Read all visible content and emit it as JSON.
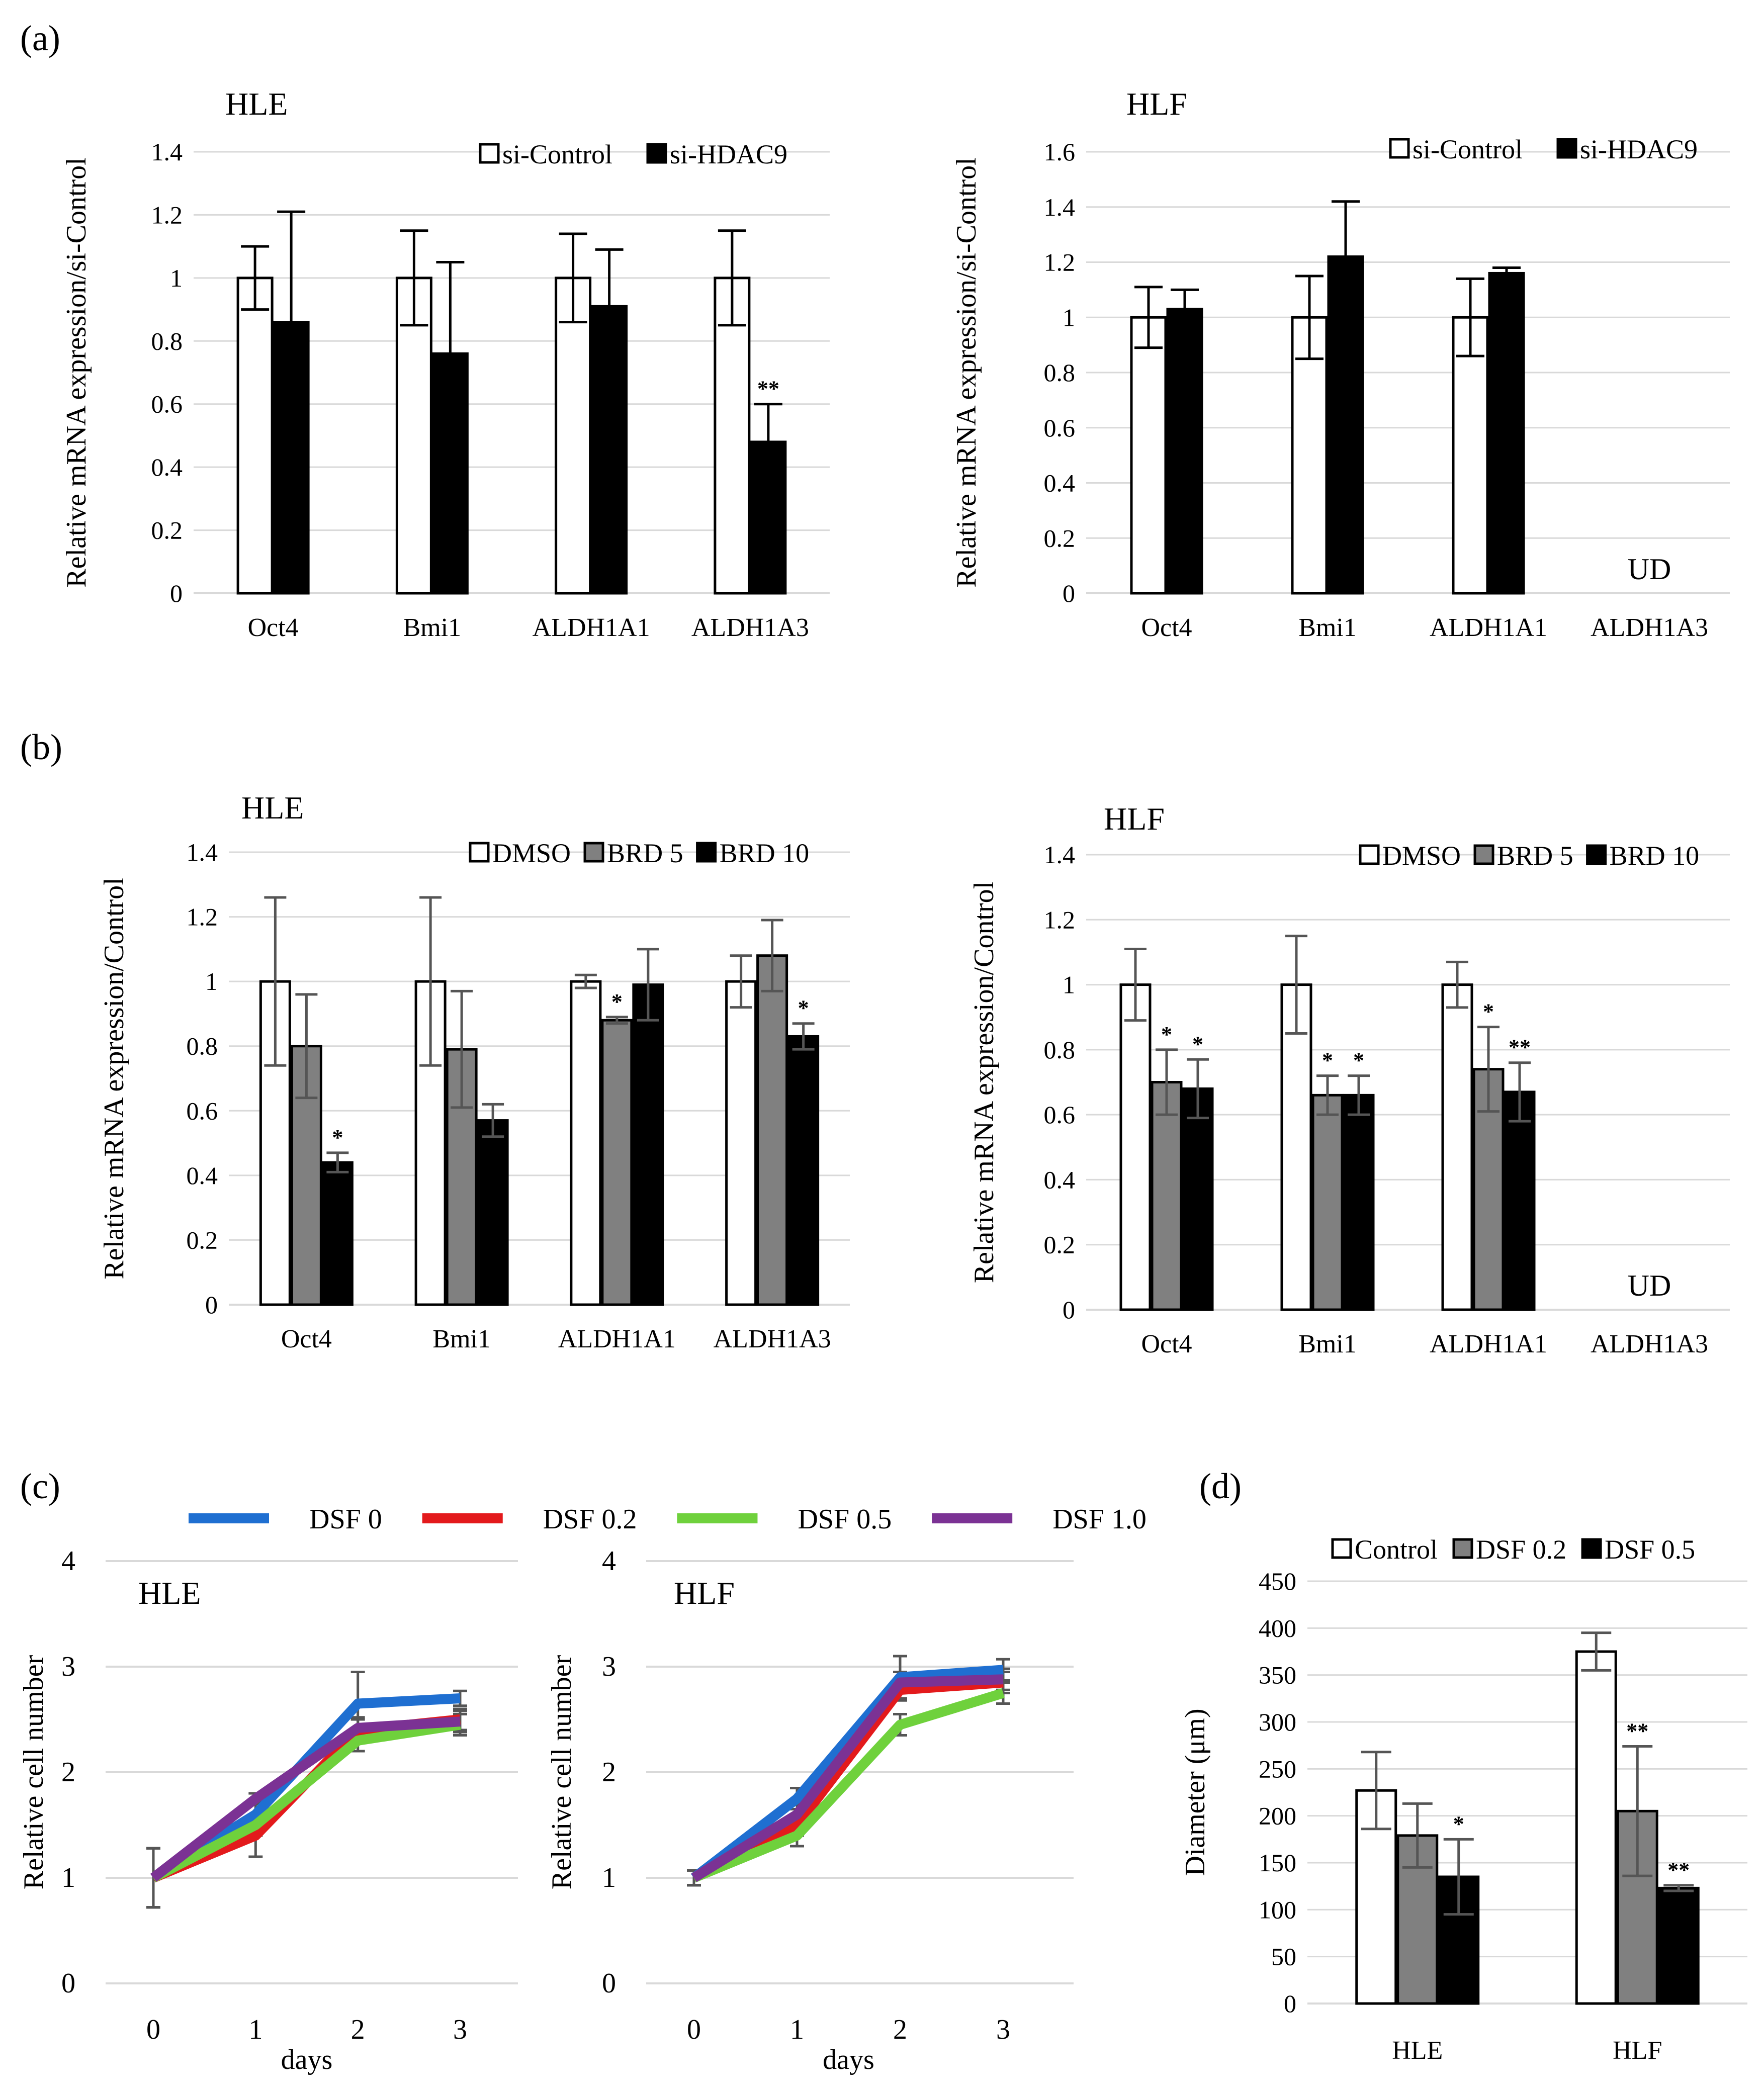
{
  "panel_labels": {
    "a": "(a)",
    "b": "(b)",
    "c": "(c)",
    "d": "(d)"
  },
  "legends": {
    "siRNA": [
      "si-Control",
      "si-HDAC9"
    ],
    "BRD": [
      "DMSO",
      "BRD 5",
      "BRD 10"
    ],
    "DSF_lines": [
      "DSF 0",
      "DSF 0.2",
      "DSF 0.5",
      "DSF 1.0"
    ],
    "DSF_bars": [
      "Control",
      "DSF 0.2",
      "DSF 0.5"
    ]
  },
  "colors": {
    "white_bar": "#ffffff",
    "gray_bar": "#808080",
    "black_bar": "#000000",
    "dsf0": "#1f6fd1",
    "dsf02": "#e31a1c",
    "dsf05": "#6fd13c",
    "dsf10": "#7b3294",
    "gridline": "#d9d9d9"
  },
  "chart_data": [
    {
      "id": "a-hle",
      "type": "bar",
      "title": "HLE",
      "ylabel": "Relative mRNA expression/si-Control",
      "xlabel": "",
      "ylim": [
        0,
        1.4
      ],
      "ytick_labels": [
        "0",
        "0.2",
        "0.4",
        "0.6",
        "0.8",
        "1",
        "1.2",
        "1.4"
      ],
      "categories": [
        "Oct4",
        "Bmi1",
        "ALDH1A1",
        "ALDH1A3"
      ],
      "series": [
        {
          "name": "si-Control",
          "values": [
            1,
            1,
            1,
            1
          ],
          "errors": [
            0.1,
            0.15,
            0.14,
            0.15
          ]
        },
        {
          "name": "si-HDAC9",
          "values": [
            0.86,
            0.76,
            0.91,
            0.48
          ],
          "errors": [
            0.35,
            0.29,
            0.18,
            0.12
          ]
        }
      ],
      "annotations": [
        {
          "series": 1,
          "category": 3,
          "text": "**"
        }
      ]
    },
    {
      "id": "a-hlf",
      "type": "bar",
      "title": "HLF",
      "ylabel": "Relative mRNA expression/si-Control",
      "xlabel": "",
      "ylim": [
        0,
        1.6
      ],
      "ytick_labels": [
        "0",
        "0.2",
        "0.4",
        "0.6",
        "0.8",
        "1",
        "1.2",
        "1.4",
        "1.6"
      ],
      "categories": [
        "Oct4",
        "Bmi1",
        "ALDH1A1",
        "ALDH1A3"
      ],
      "series": [
        {
          "name": "si-Control",
          "values": [
            1,
            1,
            1,
            null
          ],
          "errors": [
            0.11,
            0.15,
            0.14,
            null
          ]
        },
        {
          "name": "si-HDAC9",
          "values": [
            1.03,
            1.22,
            1.16,
            null
          ],
          "errors": [
            0.07,
            0.2,
            0.02,
            null
          ]
        }
      ],
      "annotations": [],
      "ud_label": "UD"
    },
    {
      "id": "b-hle",
      "type": "bar",
      "title": "HLE",
      "ylabel": "Relative mRNA expression/Control",
      "xlabel": "",
      "ylim": [
        0,
        1.4
      ],
      "ytick_labels": [
        "0",
        "0.2",
        "0.4",
        "0.6",
        "0.8",
        "1",
        "1.2",
        "1.4"
      ],
      "categories": [
        "Oct4",
        "Bmi1",
        "ALDH1A1",
        "ALDH1A3"
      ],
      "series": [
        {
          "name": "DMSO",
          "values": [
            1,
            1,
            1,
            1
          ],
          "errors": [
            0.26,
            0.26,
            0.02,
            0.08
          ]
        },
        {
          "name": "BRD 5",
          "values": [
            0.8,
            0.79,
            0.88,
            1.08
          ],
          "errors": [
            0.16,
            0.18,
            0.01,
            0.11
          ]
        },
        {
          "name": "BRD 10",
          "values": [
            0.44,
            0.57,
            0.99,
            0.83
          ],
          "errors": [
            0.03,
            0.05,
            0.11,
            0.04
          ]
        }
      ],
      "annotations": [
        {
          "series": 2,
          "category": 0,
          "text": "*"
        },
        {
          "series": 1,
          "category": 2,
          "text": "*"
        },
        {
          "series": 2,
          "category": 3,
          "text": "*"
        }
      ]
    },
    {
      "id": "b-hlf",
      "type": "bar",
      "title": "HLF",
      "ylabel": "Relative mRNA expression/Control",
      "xlabel": "",
      "ylim": [
        0,
        1.4
      ],
      "ytick_labels": [
        "0",
        "0.2",
        "0.4",
        "0.6",
        "0.8",
        "1",
        "1.2",
        "1.4"
      ],
      "categories": [
        "Oct4",
        "Bmi1",
        "ALDH1A1",
        "ALDH1A3"
      ],
      "series": [
        {
          "name": "DMSO",
          "values": [
            1,
            1,
            1,
            null
          ],
          "errors": [
            0.11,
            0.15,
            0.07,
            null
          ]
        },
        {
          "name": "BRD 5",
          "values": [
            0.7,
            0.66,
            0.74,
            null
          ],
          "errors": [
            0.1,
            0.06,
            0.13,
            null
          ]
        },
        {
          "name": "BRD 10",
          "values": [
            0.68,
            0.66,
            0.67,
            null
          ],
          "errors": [
            0.09,
            0.06,
            0.09,
            null
          ]
        }
      ],
      "annotations": [
        {
          "series": 1,
          "category": 0,
          "text": "*"
        },
        {
          "series": 2,
          "category": 0,
          "text": "*"
        },
        {
          "series": 1,
          "category": 1,
          "text": "*"
        },
        {
          "series": 2,
          "category": 1,
          "text": "*"
        },
        {
          "series": 1,
          "category": 2,
          "text": "*"
        },
        {
          "series": 2,
          "category": 2,
          "text": "**"
        }
      ],
      "ud_label": "UD"
    },
    {
      "id": "c-hle",
      "type": "line",
      "title": "HLE",
      "ylabel": "Relative cell number",
      "xlabel": "days",
      "ylim": [
        0,
        4
      ],
      "ytick_labels": [
        "0",
        "1",
        "2",
        "3",
        "4"
      ],
      "x": [
        0,
        1,
        2,
        3
      ],
      "xtick_labels": [
        "0",
        "1",
        "2",
        "3"
      ],
      "series": [
        {
          "name": "DSF 0",
          "values": [
            1,
            1.6,
            2.65,
            2.7
          ],
          "errors": [
            0.28,
            0.12,
            0.3,
            0.07
          ]
        },
        {
          "name": "DSF 0.2",
          "values": [
            1,
            1.4,
            2.4,
            2.5
          ],
          "errors": [
            0.28,
            0.2,
            0.1,
            0.1
          ]
        },
        {
          "name": "DSF 0.5",
          "values": [
            1,
            1.5,
            2.3,
            2.45
          ],
          "errors": [
            0.28,
            0.1,
            0.1,
            0.1
          ]
        },
        {
          "name": "DSF 1.0",
          "values": [
            1,
            1.75,
            2.42,
            2.48
          ],
          "errors": [
            0.28,
            0.05,
            0.1,
            0.1
          ]
        }
      ]
    },
    {
      "id": "c-hlf",
      "type": "line",
      "title": "HLF",
      "ylabel": "Relative cell number",
      "xlabel": "days",
      "ylim": [
        0,
        4
      ],
      "ytick_labels": [
        "0",
        "1",
        "2",
        "3",
        "4"
      ],
      "x": [
        0,
        1,
        2,
        3
      ],
      "xtick_labels": [
        "0",
        "1",
        "2",
        "3"
      ],
      "series": [
        {
          "name": "DSF 0",
          "values": [
            1,
            1.75,
            2.9,
            2.97
          ],
          "errors": [
            0.07,
            0.1,
            0.2,
            0.1
          ]
        },
        {
          "name": "DSF 0.2",
          "values": [
            1,
            1.5,
            2.78,
            2.85
          ],
          "errors": [
            0.07,
            0.1,
            0.1,
            0.1
          ]
        },
        {
          "name": "DSF 0.5",
          "values": [
            1,
            1.4,
            2.45,
            2.75
          ],
          "errors": [
            0.07,
            0.1,
            0.1,
            0.1
          ]
        },
        {
          "name": "DSF 1.0",
          "values": [
            1,
            1.6,
            2.85,
            2.88
          ],
          "errors": [
            0.07,
            0.1,
            0.1,
            0.1
          ]
        }
      ]
    },
    {
      "id": "d",
      "type": "bar",
      "title": "",
      "ylabel": "Diameter (μm)",
      "xlabel": "",
      "ylim": [
        0,
        450
      ],
      "ytick_labels": [
        "0",
        "50",
        "100",
        "150",
        "200",
        "250",
        "300",
        "350",
        "400",
        "450"
      ],
      "categories": [
        "HLE",
        "HLF"
      ],
      "series": [
        {
          "name": "Control",
          "values": [
            227,
            375
          ],
          "errors": [
            41,
            20
          ]
        },
        {
          "name": "DSF 0.2",
          "values": [
            179,
            205
          ],
          "errors": [
            34,
            69
          ]
        },
        {
          "name": "DSF 0.5",
          "values": [
            135,
            123
          ],
          "errors": [
            40,
            3
          ]
        }
      ],
      "annotations": [
        {
          "series": 2,
          "category": 0,
          "text": "*"
        },
        {
          "series": 1,
          "category": 1,
          "text": "**"
        },
        {
          "series": 2,
          "category": 1,
          "text": "**"
        }
      ]
    }
  ]
}
